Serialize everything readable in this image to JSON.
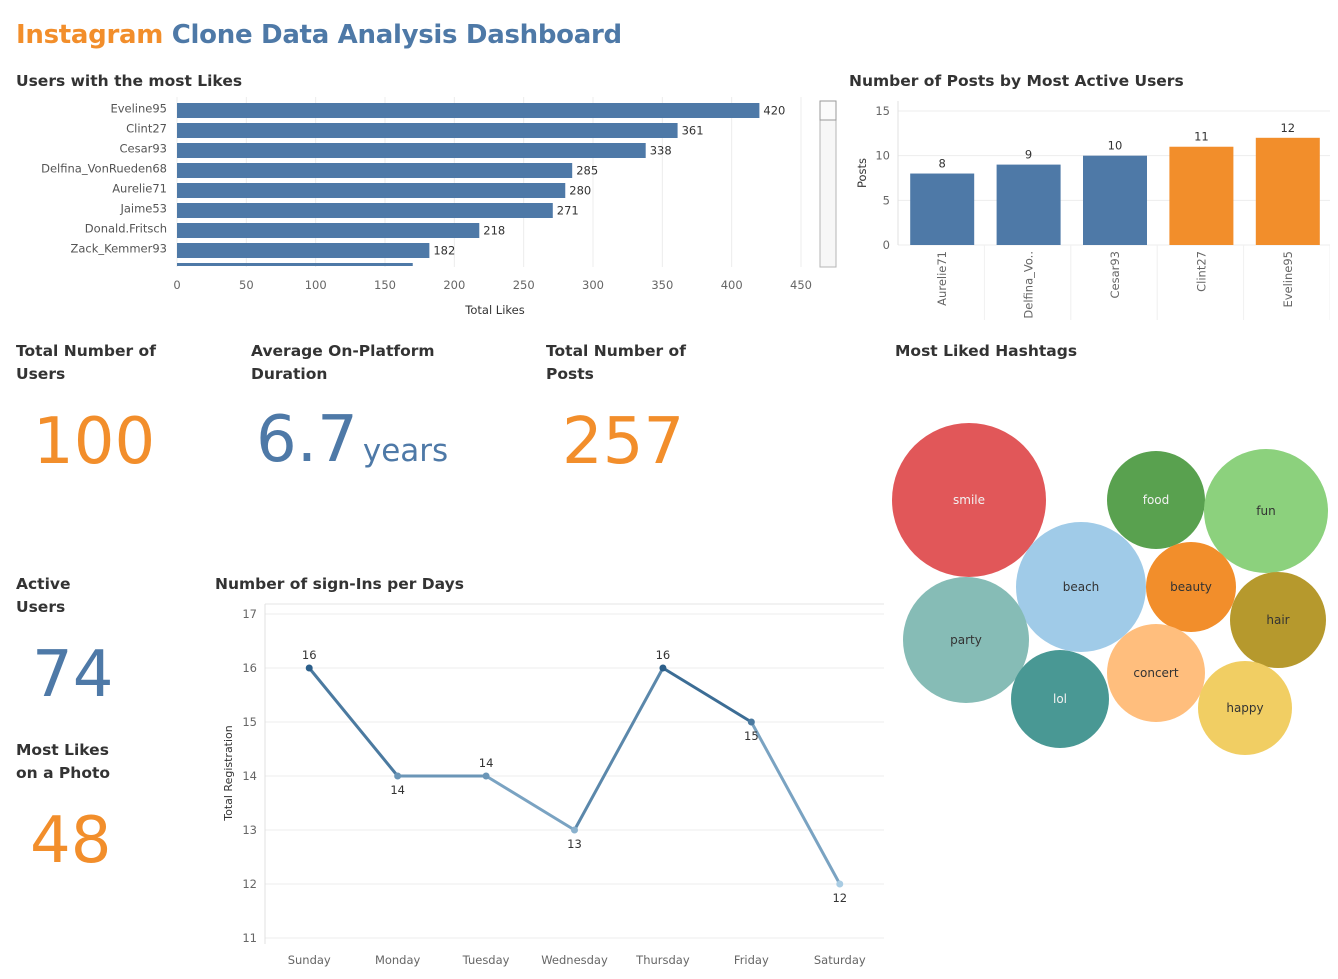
{
  "dashboard": {
    "title_part1": "Instagram",
    "title_part2": "Clone Data Analysis Dashboard"
  },
  "colors": {
    "blue": "#4e79a7",
    "orange": "#f28e2b"
  },
  "kpis": {
    "total_users": {
      "label_line1": "Total Number of",
      "label_line2": "Users",
      "value": "100"
    },
    "avg_duration": {
      "label_line1": "Average On-Platform",
      "label_line2": "Duration",
      "value": "6.7",
      "unit": "years"
    },
    "total_posts": {
      "label_line1": "Total Number of",
      "label_line2": "Posts",
      "value": "257"
    },
    "active_users": {
      "label_line1": "Active",
      "label_line2": "Users",
      "value": "74"
    },
    "most_likes_photo": {
      "label_line1": "Most Likes",
      "label_line2": "on a Photo",
      "value": "48"
    }
  },
  "chart_data": [
    {
      "id": "likes",
      "type": "bar",
      "orientation": "horizontal",
      "title": "Users with the most Likes",
      "xlabel": "Total Likes",
      "xlim": [
        0,
        450
      ],
      "xticks": [
        0,
        50,
        100,
        150,
        200,
        250,
        300,
        350,
        400,
        450
      ],
      "categories": [
        "Eveline95",
        "Clint27",
        "Cesar93",
        "Delfina_VonRueden68",
        "Aurelie71",
        "Jaime53",
        "Donald.Fritsch",
        "Zack_Kemmer93"
      ],
      "values": [
        420,
        361,
        338,
        285,
        280,
        271,
        218,
        182
      ],
      "scrollable": true,
      "color": "#4e79a7"
    },
    {
      "id": "posts",
      "type": "bar",
      "orientation": "vertical",
      "title": "Number of Posts by Most Active Users",
      "ylabel": "Posts",
      "ylim": [
        0,
        15
      ],
      "yticks": [
        0,
        5,
        10,
        15
      ],
      "categories": [
        "Aurelie71",
        "Delfina_Vo..",
        "Cesar93",
        "Clint27",
        "Eveline95"
      ],
      "values": [
        8,
        9,
        10,
        11,
        12
      ],
      "colors": [
        "#4e79a7",
        "#4e79a7",
        "#4e79a7",
        "#f28e2b",
        "#f28e2b"
      ]
    },
    {
      "id": "signins",
      "type": "line",
      "title": "Number of sign-Ins per Days",
      "ylabel": "Total Registration",
      "ylim": [
        11,
        17
      ],
      "yticks": [
        11,
        12,
        13,
        14,
        15,
        16,
        17
      ],
      "categories": [
        "Sunday",
        "Monday",
        "Tuesday",
        "Wednesday",
        "Thursday",
        "Friday",
        "Saturday"
      ],
      "values": [
        16,
        14,
        14,
        13,
        16,
        15,
        12
      ],
      "color_scale": [
        "#a9cce3",
        "#2c5f8a"
      ]
    },
    {
      "id": "hashtags",
      "type": "bubble",
      "title": "Most Liked Hashtags",
      "items": [
        {
          "label": "smile",
          "color": "#e15759"
        },
        {
          "label": "food",
          "color": "#59a14f"
        },
        {
          "label": "fun",
          "color": "#8cd17d"
        },
        {
          "label": "beach",
          "color": "#a0cbe8"
        },
        {
          "label": "beauty",
          "color": "#f28e2b"
        },
        {
          "label": "party",
          "color": "#86bcb6"
        },
        {
          "label": "hair",
          "color": "#b6992d"
        },
        {
          "label": "concert",
          "color": "#ffbe7d"
        },
        {
          "label": "lol",
          "color": "#499894"
        },
        {
          "label": "happy",
          "color": "#f1ce63"
        }
      ]
    }
  ]
}
